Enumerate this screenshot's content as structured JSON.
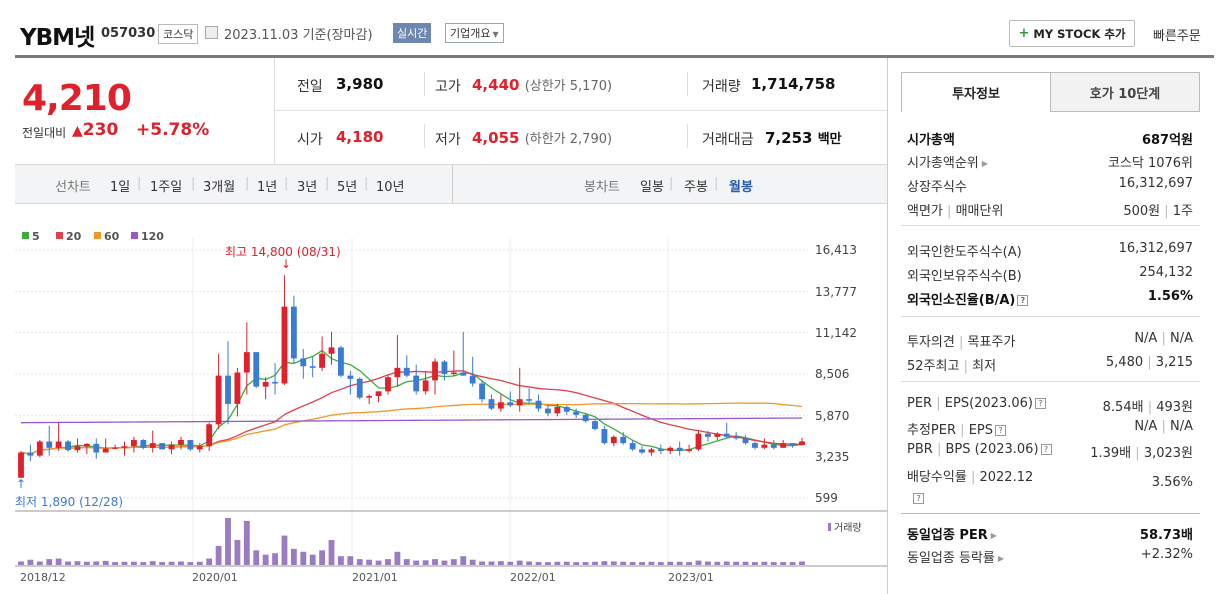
{
  "header": {
    "name": "YBM넷",
    "code": "057030",
    "market": "코스닥",
    "date": "2023.11.03",
    "basis": "기준(장마감)",
    "realtime": "실시간",
    "company_overview": "기업개요",
    "my_stock": "MY STOCK 추가",
    "quick_order": "빠른주문"
  },
  "quote": {
    "price": "4,210",
    "change_label": "전일대비",
    "change": "230",
    "change_pct": "+5.78%",
    "prev_label": "전일",
    "prev": "3,980",
    "open_label": "시가",
    "open": "4,180",
    "high_label": "고가",
    "high": "4,440",
    "upper_limit": "(상한가 5,170)",
    "low_label": "저가",
    "low": "4,055",
    "lower_limit": "(하한가 2,790)",
    "volume_label": "거래량",
    "volume": "1,714,758",
    "amount_label": "거래대금",
    "amount": "7,253",
    "amount_unit": "백만"
  },
  "periods": {
    "line_label": "선차트",
    "line_items": [
      "1일",
      "1주일",
      "3개월",
      "1년",
      "3년",
      "5년",
      "10년"
    ],
    "candle_label": "봉차트",
    "candle_items": [
      "일봉",
      "주봉",
      "월봉"
    ],
    "active_candle": "월봉"
  },
  "chart_data": {
    "type": "candlestick",
    "title": "YBM넷 월봉",
    "legend": [
      "5",
      "20",
      "60",
      "120"
    ],
    "legend_colors": [
      "#3cae3c",
      "#e0404a",
      "#f0982c",
      "#9b59c8"
    ],
    "up_color": "#e0202a",
    "down_color": "#3a7bd5",
    "volume_color": "#9b7cc0",
    "y_ticks": [
      "16,413",
      "13,777",
      "11,142",
      "8,506",
      "5,870",
      "3,235",
      "599"
    ],
    "ylim": [
      599,
      16413
    ],
    "x_ticks": [
      "2018/12",
      "2020/01",
      "2021/01",
      "2022/01",
      "2023/01"
    ],
    "high_label": "최고 14,800 (08/31)",
    "low_label": "최저 1,890 (12/28)",
    "volume_label": "거래량",
    "candles": [
      [
        1890,
        3600,
        1890,
        3500
      ],
      [
        3500,
        4000,
        2950,
        3300
      ],
      [
        3300,
        4300,
        3200,
        4200
      ],
      [
        4200,
        5200,
        3300,
        3800
      ],
      [
        3800,
        5400,
        3600,
        4200
      ],
      [
        4200,
        4300,
        3550,
        3650
      ],
      [
        3650,
        4400,
        3500,
        3900
      ],
      [
        3900,
        4100,
        3400,
        4050
      ],
      [
        4050,
        4400,
        3100,
        3500
      ],
      [
        3500,
        4400,
        3500,
        3750
      ],
      [
        3750,
        4000,
        3700,
        3800
      ],
      [
        3800,
        4200,
        3300,
        3900
      ],
      [
        3900,
        4500,
        3500,
        4300
      ],
      [
        4300,
        4350,
        3700,
        3800
      ],
      [
        3800,
        4900,
        3500,
        4100
      ],
      [
        4100,
        4100,
        3700,
        3700
      ],
      [
        3700,
        4200,
        3400,
        4000
      ],
      [
        4000,
        4500,
        3700,
        4300
      ],
      [
        4300,
        4300,
        3600,
        3700
      ],
      [
        3700,
        4100,
        3500,
        3900
      ],
      [
        3900,
        5400,
        3600,
        5300
      ],
      [
        5300,
        9800,
        5000,
        8400
      ],
      [
        8400,
        10600,
        5300,
        6600
      ],
      [
        6600,
        8900,
        5800,
        8600
      ],
      [
        8600,
        11800,
        7200,
        9900
      ],
      [
        9900,
        9900,
        7600,
        7700
      ],
      [
        7700,
        8300,
        6900,
        8000
      ],
      [
        8000,
        9200,
        7200,
        7900
      ],
      [
        7900,
        14800,
        7800,
        12800
      ],
      [
        12800,
        13500,
        9200,
        9500
      ],
      [
        9500,
        10100,
        8200,
        9000
      ],
      [
        9000,
        9600,
        8300,
        8900
      ],
      [
        8900,
        10900,
        8700,
        9800
      ],
      [
        9800,
        11200,
        9100,
        10200
      ],
      [
        10200,
        10300,
        8300,
        8400
      ],
      [
        8400,
        8700,
        7200,
        8200
      ],
      [
        8200,
        8300,
        6900,
        7000
      ],
      [
        7000,
        7200,
        6600,
        7100
      ],
      [
        7100,
        7400,
        6700,
        7400
      ],
      [
        7400,
        8400,
        7200,
        8300
      ],
      [
        8300,
        11000,
        7700,
        8900
      ],
      [
        8900,
        9700,
        8300,
        8400
      ],
      [
        8400,
        9100,
        7200,
        7400
      ],
      [
        7400,
        8600,
        7200,
        8100
      ],
      [
        8100,
        9500,
        7200,
        9300
      ],
      [
        9300,
        9400,
        8100,
        8500
      ],
      [
        8500,
        10000,
        8400,
        8600
      ],
      [
        8600,
        11200,
        8400,
        8400
      ],
      [
        8400,
        9600,
        7700,
        7900
      ],
      [
        7900,
        8100,
        6700,
        6900
      ],
      [
        6900,
        7200,
        6200,
        6300
      ],
      [
        6300,
        7200,
        6100,
        6700
      ],
      [
        6700,
        7400,
        6400,
        6500
      ],
      [
        6500,
        8900,
        6100,
        6900
      ],
      [
        6900,
        7600,
        6600,
        6800
      ],
      [
        6800,
        7200,
        6100,
        6300
      ],
      [
        6300,
        6500,
        5800,
        6000
      ],
      [
        6000,
        6600,
        5800,
        6400
      ],
      [
        6400,
        6500,
        5900,
        6100
      ],
      [
        6100,
        6300,
        5700,
        5900
      ],
      [
        5900,
        6000,
        5400,
        5500
      ],
      [
        5500,
        5600,
        4900,
        5000
      ],
      [
        5000,
        5200,
        4000,
        4100
      ],
      [
        4100,
        4600,
        3900,
        4500
      ],
      [
        4500,
        4800,
        4000,
        4100
      ],
      [
        4100,
        4300,
        3600,
        3700
      ],
      [
        3700,
        3900,
        3400,
        3500
      ],
      [
        3500,
        3800,
        3300,
        3700
      ],
      [
        3700,
        4000,
        3400,
        3600
      ],
      [
        3600,
        3900,
        3400,
        3800
      ],
      [
        3800,
        4200,
        3300,
        3600
      ],
      [
        3600,
        4000,
        3500,
        3700
      ],
      [
        3700,
        4900,
        3600,
        4700
      ],
      [
        4700,
        4900,
        4200,
        4500
      ],
      [
        4500,
        4800,
        4300,
        4700
      ],
      [
        4700,
        5400,
        4400,
        4500
      ],
      [
        4500,
        4800,
        4300,
        4400
      ],
      [
        4400,
        4600,
        4000,
        4100
      ],
      [
        4100,
        4200,
        3700,
        3800
      ],
      [
        3800,
        4400,
        3700,
        4000
      ],
      [
        4000,
        4300,
        3700,
        3800
      ],
      [
        3800,
        4300,
        3800,
        4100
      ],
      [
        4100,
        4100,
        3800,
        3980
      ],
      [
        3980,
        4440,
        3950,
        4210
      ]
    ],
    "volume": [
      1.2,
      1.8,
      1.2,
      2,
      2.2,
      1.2,
      1.3,
      1.1,
      1.2,
      1.4,
      1,
      1.1,
      1.1,
      1,
      1.3,
      1,
      1.1,
      1.2,
      1,
      1.1,
      2.2,
      6.5,
      16,
      8.5,
      15,
      5,
      3.5,
      4,
      10,
      5.5,
      4.5,
      3.5,
      5,
      8.5,
      3,
      3,
      2,
      1.8,
      1.5,
      2,
      4.5,
      2,
      1.5,
      1.6,
      2,
      1.5,
      2,
      3,
      1.8,
      1.2,
      1.2,
      1.3,
      1.1,
      1.5,
      1.2,
      1,
      1,
      1.1,
      1.1,
      1,
      1,
      1.1,
      1.3,
      1.2,
      1.1,
      1,
      1,
      1.1,
      1,
      1.1,
      1.1,
      1,
      1.5,
      1.2,
      1.1,
      1.2,
      1.1,
      1.1,
      1,
      1.1,
      1,
      1,
      1,
      1.2
    ]
  },
  "right": {
    "tab_invest": "투자정보",
    "tab_hoga": "호가 10단계",
    "market_cap_label": "시가총액",
    "market_cap": "687억원",
    "cap_rank_label": "시가총액순위",
    "cap_rank": "코스닥 1076위",
    "shares_label": "상장주식수",
    "shares": "16,312,697",
    "par_label": "액면가",
    "lot_label": "매매단위",
    "par": "500원",
    "lot": "1주",
    "foreign_limit_label": "외국인한도주식수(A)",
    "foreign_limit": "16,312,697",
    "foreign_hold_label": "외국인보유주식수(B)",
    "foreign_hold": "254,132",
    "foreign_ratio_label": "외국인소진율(B/A)",
    "foreign_ratio": "1.56%",
    "opinion_label": "투자의견",
    "target_label": "목표주가",
    "opinion": "N/A",
    "target": "N/A",
    "w52_high_label": "52주최고",
    "w52_low_label": "최저",
    "w52_high": "5,480",
    "w52_low": "3,215",
    "per_label": "PER",
    "eps_label": "EPS(2023.06)",
    "per": "8.54배",
    "eps": "493원",
    "est_per_label": "추정PER",
    "est_eps_label": "EPS",
    "est_per": "N/A",
    "est_eps": "N/A",
    "pbr_label": "PBR",
    "bps_label": "BPS (2023.06)",
    "pbr": "1.39배",
    "bps": "3,023원",
    "div_label": "배당수익률",
    "div_year": "2022.12",
    "div": "3.56%",
    "ind_per_label": "동일업종 PER",
    "ind_per": "58.73배",
    "ind_rate_label": "동일업종 등락률",
    "ind_rate": "+2.32%"
  }
}
